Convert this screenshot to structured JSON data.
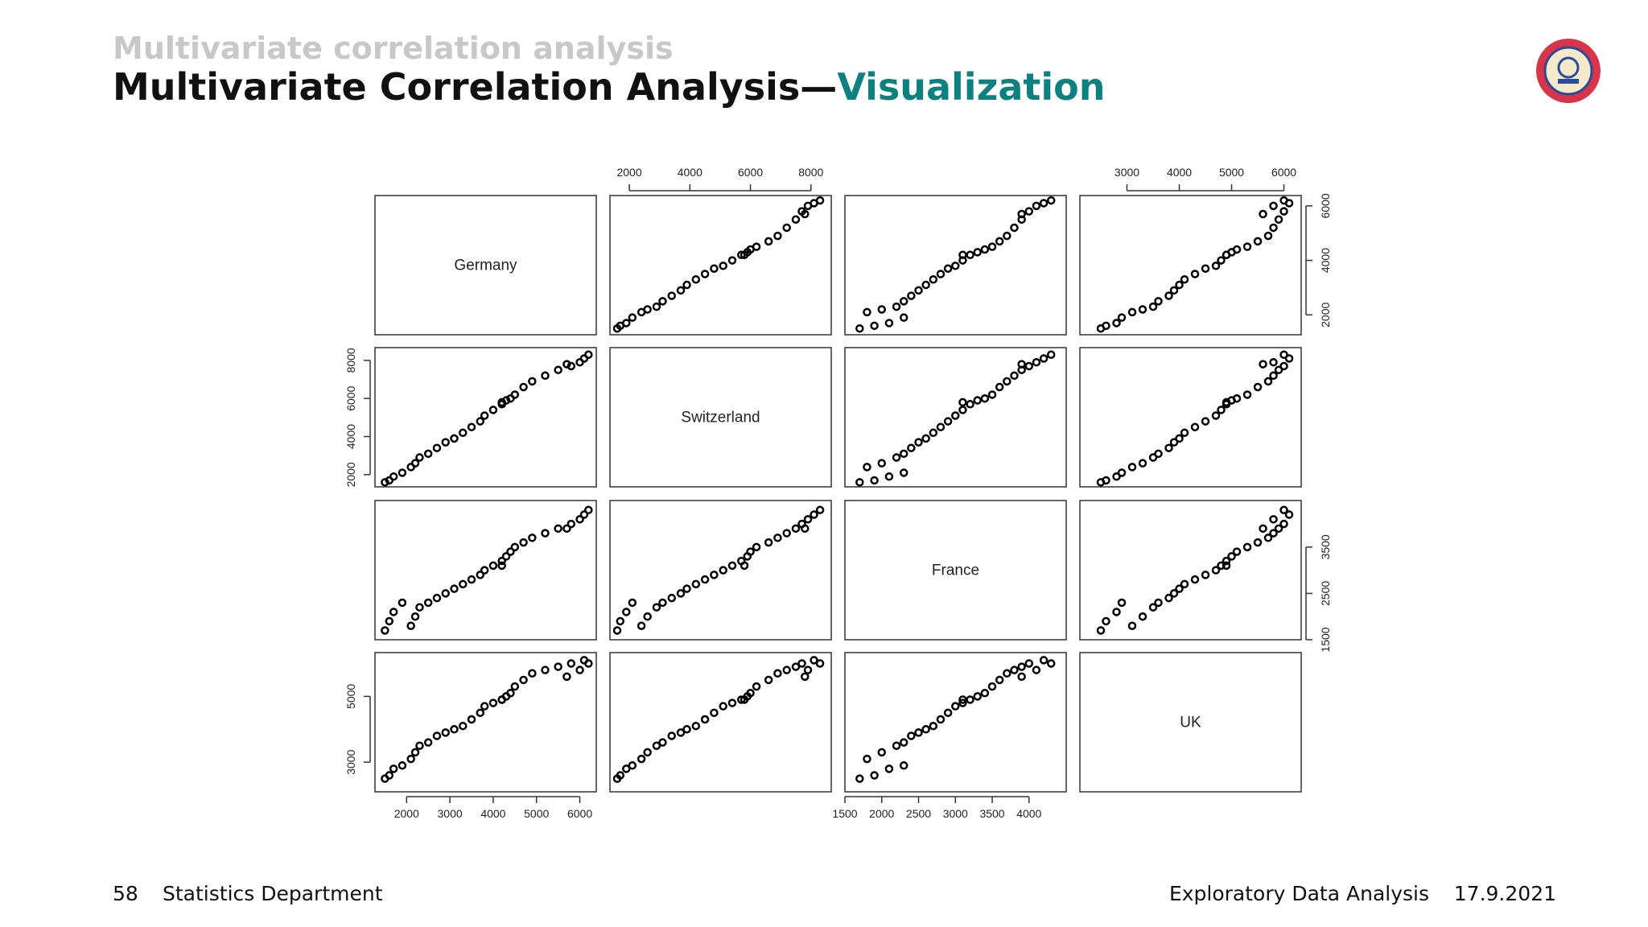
{
  "header": {
    "section": "Multivariate correlation analysis",
    "title": "Multivariate Correlation Analysis—",
    "title_highlight": "Visualization"
  },
  "chart_data": {
    "type": "pairs",
    "variables": [
      {
        "name": "Germany",
        "lim": [
          1270,
          6380
        ],
        "values": [
          1500,
          1600,
          1700,
          1900,
          2100,
          2200,
          2300,
          2500,
          2700,
          2900,
          3100,
          3300,
          3500,
          3700,
          3800,
          4000,
          4200,
          4300,
          4400,
          4200,
          4500,
          4700,
          4900,
          5200,
          5500,
          5800,
          6000,
          6100,
          5700,
          6200
        ]
      },
      {
        "name": "Switzerland",
        "lim": [
          1360,
          8670
        ],
        "values": [
          1600,
          1700,
          1900,
          2100,
          2400,
          2600,
          2900,
          3100,
          3400,
          3700,
          3900,
          4200,
          4500,
          4800,
          5100,
          5400,
          5700,
          5900,
          6000,
          5800,
          6200,
          6600,
          6900,
          7200,
          7500,
          7700,
          7900,
          8100,
          7800,
          8300
        ]
      },
      {
        "name": "France",
        "lim": [
          1500,
          4505
        ],
        "values": [
          1700,
          1900,
          2100,
          2300,
          1800,
          2000,
          2200,
          2300,
          2400,
          2500,
          2600,
          2700,
          2800,
          2900,
          3000,
          3100,
          3200,
          3300,
          3400,
          3100,
          3500,
          3600,
          3700,
          3800,
          3900,
          4000,
          4100,
          4200,
          3900,
          4300
        ]
      },
      {
        "name": "UK",
        "lim": [
          2100,
          6330
        ],
        "values": [
          2500,
          2600,
          2800,
          2900,
          3100,
          3300,
          3500,
          3600,
          3800,
          3900,
          4000,
          4100,
          4300,
          4500,
          4700,
          4800,
          4900,
          5000,
          5100,
          4900,
          5300,
          5500,
          5700,
          5800,
          5900,
          6000,
          5800,
          6100,
          5600,
          6000
        ]
      }
    ],
    "axes": [
      {
        "side": "top",
        "variable": 1,
        "ticks": [
          2000,
          4000,
          6000,
          8000
        ]
      },
      {
        "side": "top",
        "variable": 3,
        "ticks": [
          3000,
          4000,
          5000,
          6000
        ]
      },
      {
        "side": "right",
        "variable": 0,
        "ticks": [
          2000,
          4000,
          6000
        ]
      },
      {
        "side": "left",
        "variable": 1,
        "ticks": [
          2000,
          4000,
          6000,
          8000
        ]
      },
      {
        "side": "right",
        "variable": 2,
        "ticks": [
          1500,
          2500,
          3500
        ]
      },
      {
        "side": "left",
        "variable": 3,
        "ticks": [
          3000,
          5000
        ]
      },
      {
        "side": "bottom",
        "variable": 0,
        "ticks": [
          2000,
          3000,
          4000,
          5000,
          6000
        ]
      },
      {
        "side": "bottom",
        "variable": 2,
        "ticks": [
          1500,
          2000,
          2500,
          3000,
          3500,
          4000
        ]
      }
    ]
  },
  "footer": {
    "page": 58,
    "department": "Statistics Department",
    "course": "Exploratory Data Analysis",
    "date": "17.9.2021"
  }
}
